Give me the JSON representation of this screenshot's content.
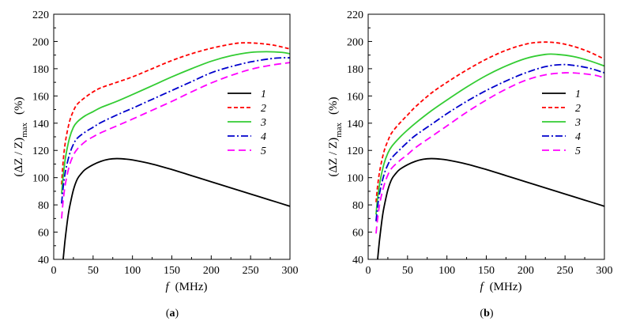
{
  "chart_data": [
    {
      "type": "line",
      "title": "",
      "caption_parts": [
        "(",
        "a",
        ")"
      ],
      "xlabel": {
        "var": "f",
        "unit": "(MHz)"
      },
      "ylabel": {
        "main": "(ΔZ / Z)",
        "sub": "max",
        "unit": "(%)"
      },
      "xlim": [
        0,
        300
      ],
      "ylim": [
        40,
        220
      ],
      "xticks": [
        0,
        50,
        100,
        150,
        200,
        250,
        300
      ],
      "yticks": [
        40,
        60,
        80,
        100,
        120,
        140,
        160,
        180,
        200,
        220
      ],
      "grid": false,
      "legend": "center-right",
      "series": [
        {
          "name": "1",
          "color": "#000000",
          "x": [
            12,
            14,
            16,
            18,
            20,
            25,
            30,
            35,
            40,
            50,
            60,
            70,
            80,
            90,
            100,
            125,
            150,
            175,
            200,
            225,
            250,
            275,
            300
          ],
          "y": [
            40,
            52,
            62,
            71,
            78,
            91,
            99,
            103,
            106,
            109.5,
            112,
            113.5,
            114,
            113.7,
            113,
            110,
            106,
            101.5,
            97,
            92.5,
            88,
            83.5,
            79
          ]
        },
        {
          "name": "2",
          "color": "#ff0000",
          "x": [
            10,
            12,
            15,
            20,
            25,
            30,
            40,
            50,
            60,
            80,
            100,
            125,
            150,
            175,
            200,
            225,
            240,
            260,
            280,
            300
          ],
          "y": [
            95,
            112,
            127,
            141,
            149,
            154,
            159,
            163,
            166,
            170,
            174,
            180,
            186,
            191,
            195,
            198,
            199,
            198.6,
            197.2,
            194.5
          ]
        },
        {
          "name": "3",
          "color": "#33cc33",
          "x": [
            10,
            12,
            15,
            20,
            25,
            30,
            40,
            50,
            60,
            80,
            100,
            125,
            150,
            175,
            200,
            225,
            250,
            270,
            290,
            300
          ],
          "y": [
            88,
            101,
            115,
            129,
            137,
            141,
            145.5,
            148.5,
            151.5,
            156,
            161,
            167.5,
            174,
            180,
            185.5,
            189.5,
            192,
            192.5,
            192,
            191
          ]
        },
        {
          "name": "4",
          "color": "#0000cc",
          "x": [
            10,
            12,
            15,
            20,
            25,
            30,
            40,
            50,
            60,
            80,
            100,
            125,
            150,
            175,
            200,
            225,
            250,
            275,
            290,
            300
          ],
          "y": [
            81,
            93,
            105,
            117,
            124.5,
            129,
            133.5,
            137,
            140.5,
            146,
            151,
            157.5,
            164,
            170.5,
            177,
            181.5,
            185,
            187.3,
            188,
            188
          ]
        },
        {
          "name": "5",
          "color": "#ff00ff",
          "x": [
            10,
            12,
            15,
            20,
            25,
            30,
            40,
            50,
            60,
            80,
            100,
            125,
            150,
            175,
            200,
            225,
            250,
            275,
            300
          ],
          "y": [
            70,
            83,
            96,
            109,
            116.5,
            121,
            126.5,
            130,
            133,
            138,
            143,
            149.5,
            156,
            163,
            169.5,
            175,
            179.5,
            182.5,
            184.5
          ]
        }
      ]
    },
    {
      "type": "line",
      "title": "",
      "caption_parts": [
        "(",
        "b",
        ")"
      ],
      "xlabel": {
        "var": "f",
        "unit": "(MHz)"
      },
      "ylabel": {
        "main": "(ΔZ / Z)",
        "sub": "max",
        "unit": "(%)"
      },
      "xlim": [
        0,
        300
      ],
      "ylim": [
        40,
        220
      ],
      "xticks": [
        0,
        50,
        100,
        150,
        200,
        250,
        300
      ],
      "yticks": [
        40,
        60,
        80,
        100,
        120,
        140,
        160,
        180,
        200,
        220
      ],
      "grid": false,
      "legend": "center-right",
      "series": [
        {
          "name": "1",
          "color": "#000000",
          "x": [
            12,
            14,
            16,
            18,
            20,
            25,
            30,
            35,
            40,
            50,
            60,
            70,
            80,
            90,
            100,
            125,
            150,
            175,
            200,
            225,
            250,
            275,
            300
          ],
          "y": [
            40,
            52,
            62,
            71,
            78,
            91,
            99,
            103,
            106,
            109.5,
            112,
            113.5,
            114,
            113.7,
            113,
            110,
            106,
            101.5,
            97,
            92.5,
            88,
            83.5,
            79
          ]
        },
        {
          "name": "2",
          "color": "#ff0000",
          "x": [
            10,
            12,
            15,
            20,
            25,
            30,
            40,
            50,
            60,
            80,
            100,
            125,
            150,
            175,
            200,
            220,
            240,
            260,
            280,
            300
          ],
          "y": [
            82,
            94,
            106,
            119,
            127,
            133,
            140,
            146,
            152,
            162,
            170,
            179,
            187,
            193.5,
            198,
            199.5,
            199,
            196.5,
            192.5,
            187
          ]
        },
        {
          "name": "3",
          "color": "#33cc33",
          "x": [
            10,
            12,
            15,
            20,
            25,
            30,
            40,
            50,
            60,
            80,
            100,
            125,
            150,
            175,
            200,
            225,
            240,
            260,
            280,
            300
          ],
          "y": [
            73,
            85,
            97,
            110,
            118,
            123,
            129.5,
            135,
            140,
            149,
            157,
            166.5,
            175,
            182,
            187.5,
            190.5,
            190.5,
            189,
            186,
            182
          ]
        },
        {
          "name": "4",
          "color": "#0000cc",
          "x": [
            10,
            12,
            15,
            20,
            25,
            30,
            40,
            50,
            60,
            80,
            100,
            125,
            150,
            175,
            200,
            225,
            245,
            260,
            280,
            300
          ],
          "y": [
            68,
            79,
            90,
            102,
            109.5,
            114.5,
            120.5,
            126,
            131,
            139,
            147,
            156,
            164,
            171,
            177,
            181.5,
            183,
            182.5,
            180.5,
            177
          ]
        },
        {
          "name": "5",
          "color": "#ff00ff",
          "x": [
            10,
            12,
            15,
            20,
            25,
            30,
            40,
            50,
            60,
            80,
            100,
            125,
            150,
            175,
            200,
            225,
            250,
            270,
            290,
            300
          ],
          "y": [
            59,
            70,
            82,
            94,
            102,
            107,
            112.5,
            117,
            122,
            130,
            138,
            148,
            157,
            165,
            171.5,
            175.5,
            177,
            176.5,
            175,
            173
          ]
        }
      ]
    }
  ]
}
